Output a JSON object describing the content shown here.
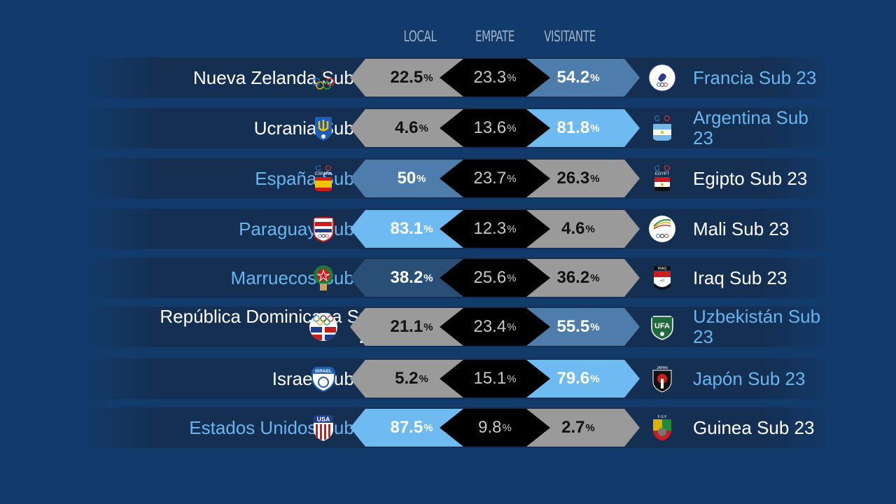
{
  "headers": {
    "local": "LOCAL",
    "draw": "EMPATE",
    "away": "VISITANTE"
  },
  "colors": {
    "background": "#123b6b",
    "win_highlight": "#6fbaf0",
    "mid_highlight": "#4e7dab",
    "neutral": "#9a9a9a",
    "draw": "#000000"
  },
  "matches": [
    {
      "local": "Nueva Zelanda Sub 23",
      "local_color": "white",
      "local_logo": "olympic-rings-icon",
      "away": "Francia Sub 23",
      "away_color": "blue",
      "away_logo": "rooster-crest-icon",
      "p_local": "22.5",
      "p_draw": "23.3",
      "p_away": "54.2",
      "pct": "%",
      "style_local": "gray",
      "style_away": "steel"
    },
    {
      "local": "Ucrania Sub 23",
      "local_color": "white",
      "local_logo": "trident-crest-icon",
      "away": "Argentina Sub 23",
      "away_color": "blue",
      "away_logo": "argentina-flag-icon",
      "p_local": "4.6",
      "p_draw": "13.6",
      "p_away": "81.8",
      "pct": "%",
      "style_local": "gray",
      "style_away": "sky"
    },
    {
      "local": "España Sub 23",
      "local_color": "blue",
      "local_logo": "spain-flag-icon",
      "away": "Egipto Sub 23",
      "away_color": "white",
      "away_logo": "egypt-flag-icon",
      "p_local": "50",
      "p_draw": "23.7",
      "p_away": "26.3",
      "pct": "%",
      "style_local": "steel",
      "style_away": "gray"
    },
    {
      "local": "Paraguay Sub 23",
      "local_color": "blue",
      "local_logo": "paraguay-crest-icon",
      "away": "Mali Sub 23",
      "away_color": "white",
      "away_logo": "mali-olympic-icon",
      "p_local": "83.1",
      "p_draw": "12.3",
      "p_away": "4.6",
      "pct": "%",
      "style_local": "sky",
      "style_away": "gray"
    },
    {
      "local": "Marruecos Sub 23",
      "local_color": "blue",
      "local_logo": "morocco-crest-icon",
      "away": "Iraq Sub 23",
      "away_color": "white",
      "away_logo": "iraq-flag-icon",
      "p_local": "38.2",
      "p_draw": "25.6",
      "p_away": "36.2",
      "pct": "%",
      "style_local": "navy",
      "style_away": "gray"
    },
    {
      "local": "República Dominicana Sub 23",
      "local_color": "white",
      "local_logo": "dominican-flag-icon",
      "away": "Uzbekistán Sub 23",
      "away_color": "blue",
      "away_logo": "ufa-crest-icon",
      "p_local": "21.1",
      "p_draw": "23.4",
      "p_away": "55.5",
      "pct": "%",
      "style_local": "gray",
      "style_away": "steel"
    },
    {
      "local": "Israel Sub 23",
      "local_color": "white",
      "local_logo": "israel-crest-icon",
      "away": "Japón Sub 23",
      "away_color": "blue",
      "away_logo": "japan-crest-icon",
      "p_local": "5.2",
      "p_draw": "15.1",
      "p_away": "79.6",
      "pct": "%",
      "style_local": "gray",
      "style_away": "sky"
    },
    {
      "local": "Estados Unidos Sub 23",
      "local_color": "blue",
      "local_logo": "usa-crest-icon",
      "away": "Guinea Sub 23",
      "away_color": "white",
      "away_logo": "guinea-crest-icon",
      "p_local": "87.5",
      "p_draw": "9.8",
      "p_away": "2.7",
      "pct": "%",
      "style_local": "sky",
      "style_away": "gray"
    }
  ]
}
